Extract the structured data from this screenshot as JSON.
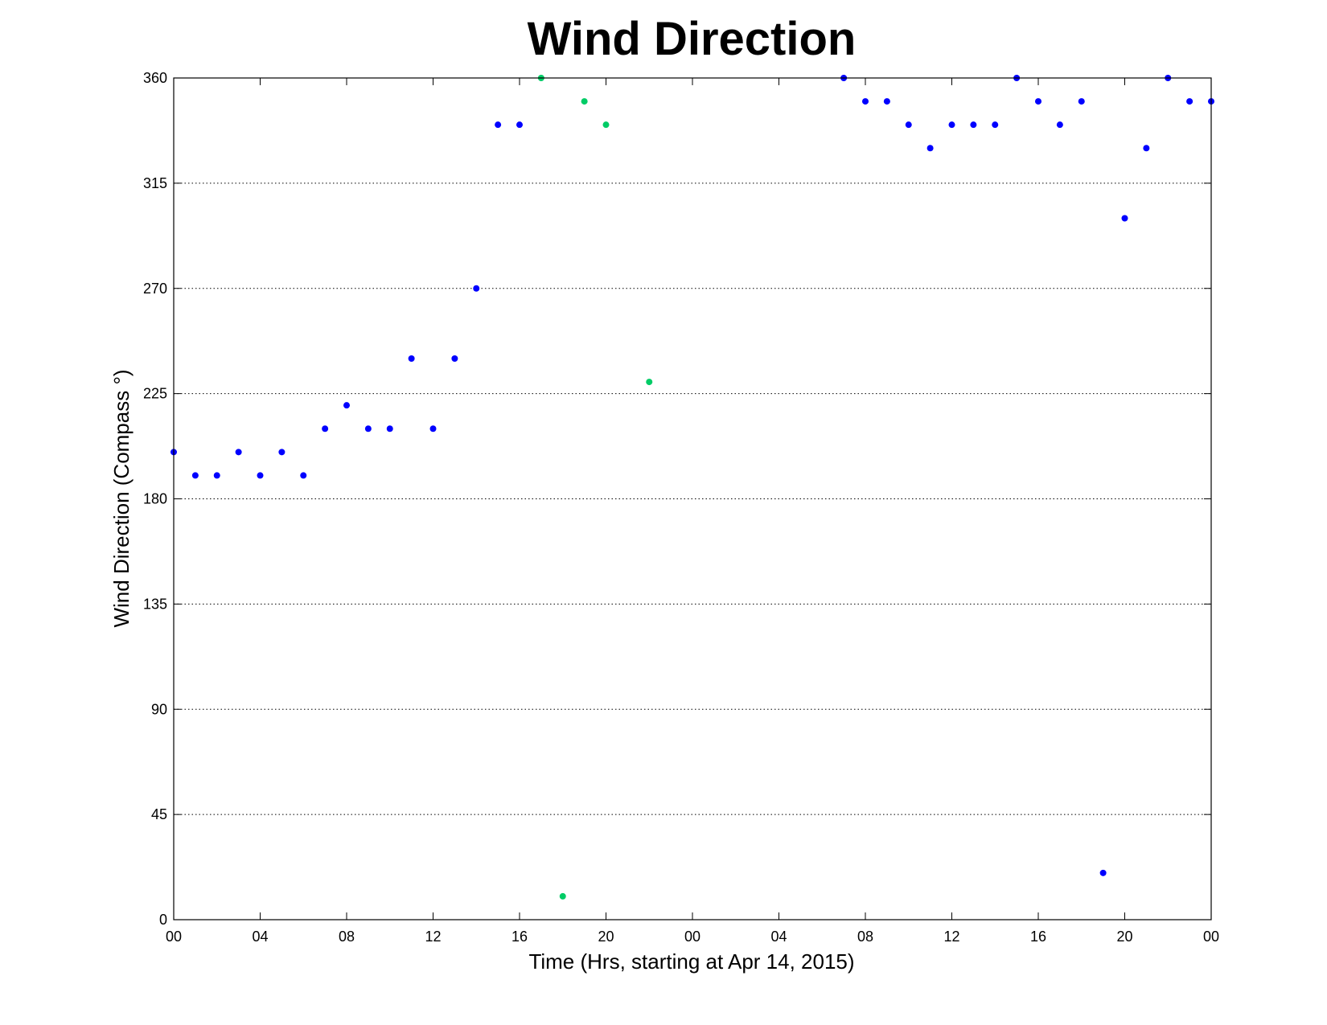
{
  "chart_data": {
    "type": "scatter",
    "title": "Wind Direction",
    "xlabel": "Time (Hrs, starting at Apr 14, 2015)",
    "ylabel": "Wind Direction (Compass  °)",
    "x_unit": "hours",
    "xlim": [
      0,
      48
    ],
    "ylim": [
      0,
      360
    ],
    "x_ticks": [
      0,
      4,
      8,
      12,
      16,
      20,
      24,
      28,
      32,
      36,
      40,
      44,
      48
    ],
    "x_tick_labels": [
      "00",
      "04",
      "08",
      "12",
      "16",
      "20",
      "00",
      "04",
      "08",
      "12",
      "16",
      "20",
      "00"
    ],
    "y_ticks": [
      0,
      45,
      90,
      135,
      180,
      225,
      270,
      315,
      360
    ],
    "y_tick_labels": [
      "0",
      "45",
      "90",
      "135",
      "180",
      "225",
      "270",
      "315",
      "360"
    ],
    "grid": "horizontal dotted",
    "series": [
      {
        "color": "#0000ff",
        "points": [
          [
            0,
            200
          ],
          [
            1,
            190
          ],
          [
            2,
            190
          ],
          [
            3,
            200
          ],
          [
            4,
            190
          ],
          [
            5,
            200
          ],
          [
            6,
            190
          ],
          [
            7,
            210
          ],
          [
            8,
            220
          ],
          [
            9,
            210
          ],
          [
            10,
            210
          ],
          [
            11,
            240
          ],
          [
            12,
            210
          ],
          [
            13,
            240
          ],
          [
            14,
            270
          ],
          [
            15,
            340
          ],
          [
            16,
            340
          ],
          [
            31,
            360
          ],
          [
            32,
            350
          ],
          [
            33,
            350
          ],
          [
            34,
            340
          ],
          [
            35,
            330
          ],
          [
            36,
            340
          ],
          [
            37,
            340
          ],
          [
            38,
            340
          ],
          [
            39,
            360
          ],
          [
            40,
            350
          ],
          [
            41,
            340
          ],
          [
            42,
            350
          ],
          [
            43,
            20
          ],
          [
            44,
            300
          ],
          [
            45,
            330
          ],
          [
            46,
            360
          ],
          [
            47,
            350
          ],
          [
            48,
            350
          ]
        ]
      },
      {
        "color": "#00cc66",
        "points": [
          [
            17,
            360
          ],
          [
            18,
            10
          ],
          [
            19,
            350
          ],
          [
            20,
            340
          ],
          [
            22,
            230
          ]
        ]
      }
    ]
  }
}
